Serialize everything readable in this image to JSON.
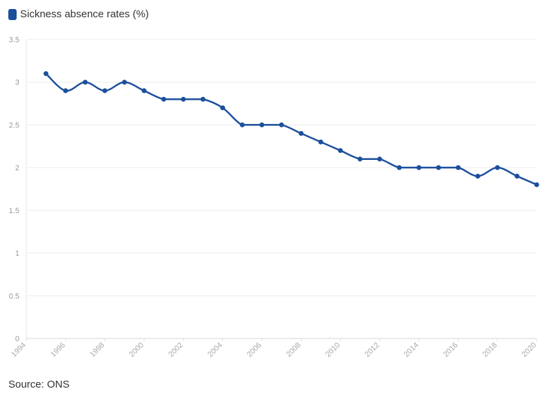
{
  "legend": {
    "label": "Sickness absence rates (%)",
    "color": "#1c4f9c"
  },
  "source": "Source: ONS",
  "chart_data": {
    "type": "line",
    "title": "",
    "xlabel": "",
    "ylabel": "",
    "xlim": [
      1994,
      2020
    ],
    "ylim": [
      0,
      3.5
    ],
    "grid": true,
    "legend_position": "top-left",
    "x_ticks": [
      "1994",
      "1996",
      "1998",
      "2000",
      "2002",
      "2004",
      "2006",
      "2008",
      "2010",
      "2012",
      "2014",
      "2016",
      "2018",
      "2020"
    ],
    "y_ticks": [
      "0",
      "0.5",
      "1",
      "1.5",
      "2",
      "2.5",
      "3",
      "3.5"
    ],
    "series": [
      {
        "name": "Sickness absence rates (%)",
        "color": "#1c4f9c",
        "x": [
          1995,
          1996,
          1997,
          1998,
          1999,
          2000,
          2001,
          2002,
          2003,
          2004,
          2005,
          2006,
          2007,
          2008,
          2009,
          2010,
          2011,
          2012,
          2013,
          2014,
          2015,
          2016,
          2017,
          2018,
          2019,
          2020
        ],
        "y": [
          3.1,
          2.9,
          3.0,
          2.9,
          3.0,
          2.9,
          2.8,
          2.8,
          2.8,
          2.7,
          2.5,
          2.5,
          2.5,
          2.4,
          2.3,
          2.2,
          2.1,
          2.1,
          2.0,
          2.0,
          2.0,
          2.0,
          1.9,
          2.0,
          1.9,
          1.8
        ]
      }
    ]
  }
}
